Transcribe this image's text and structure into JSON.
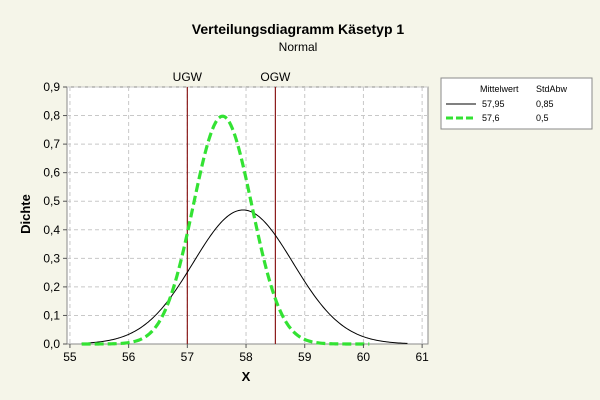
{
  "chart_data": {
    "type": "line",
    "title": "Verteilungsdiagramm Käsetyp 1",
    "subtitle": "Normal",
    "xlabel": "X",
    "ylabel": "Dichte",
    "xlim": [
      54.95,
      61.1
    ],
    "ylim": [
      0,
      0.9
    ],
    "x_ticks": [
      55,
      56,
      57,
      58,
      59,
      60,
      61
    ],
    "x_tick_labels": [
      "55",
      "56",
      "57",
      "58",
      "59",
      "60",
      "61"
    ],
    "y_ticks": [
      0,
      0.1,
      0.2,
      0.3,
      0.4,
      0.5,
      0.6,
      0.7,
      0.8,
      0.9
    ],
    "y_tick_labels": [
      "0,0",
      "0,1",
      "0,2",
      "0,3",
      "0,4",
      "0,5",
      "0,6",
      "0,7",
      "0,8",
      "0,9"
    ],
    "grid": true,
    "legend_position": "right",
    "legend_headers": [
      "Mittelwert",
      "StdAbw"
    ],
    "series": [
      {
        "mean": 57.95,
        "sd": 0.85,
        "mean_label": "57,95",
        "sd_label": "0,85",
        "color": "#000000",
        "style": "solid",
        "x_range": [
          55.2,
          60.75
        ]
      },
      {
        "mean": 57.6,
        "sd": 0.5,
        "mean_label": "57,6",
        "sd_label": "0,5",
        "color": "#33e233",
        "style": "dashed",
        "x_range": [
          55.2,
          60.1
        ]
      }
    ],
    "reference_lines": [
      {
        "label": "UGW",
        "x": 57.0,
        "color": "#8b1a1a"
      },
      {
        "label": "OGW",
        "x": 58.5,
        "color": "#8b1a1a"
      }
    ]
  }
}
